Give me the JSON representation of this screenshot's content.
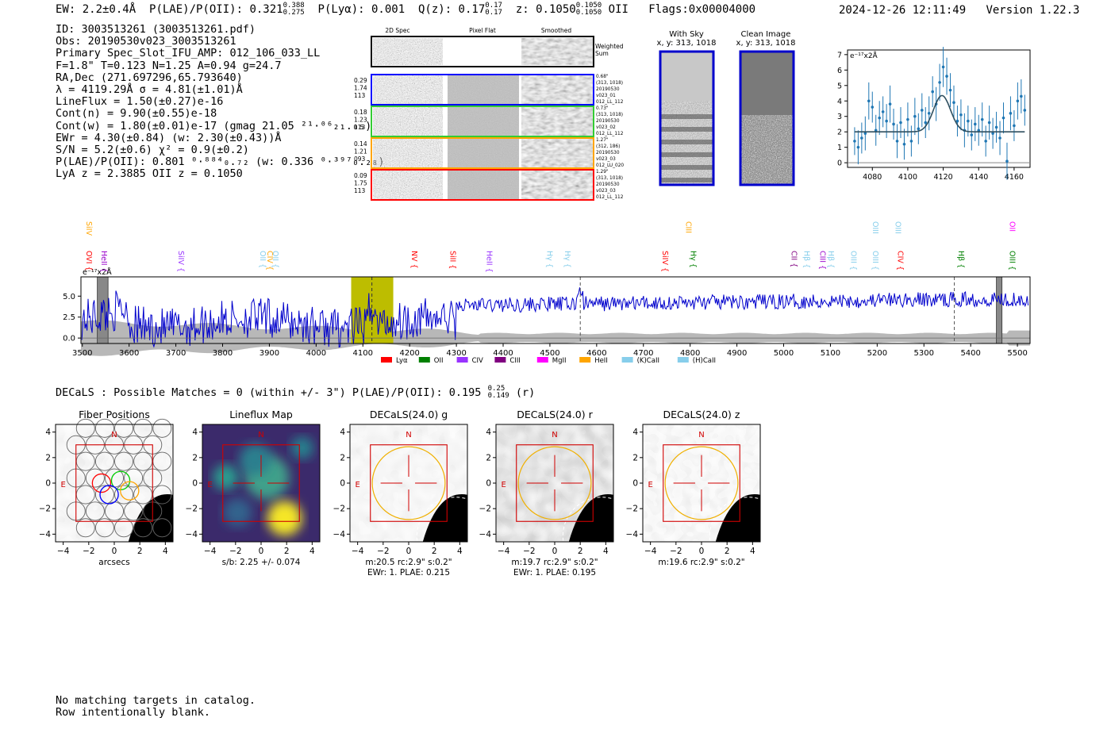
{
  "header": {
    "ew": "EW: 2.2±0.4Å",
    "plae": "P(LAE)/P(OII): 0.321",
    "plae_hi": "0.388",
    "plae_lo": "0.275",
    "plya": "P(Lyα): 0.001",
    "qz": "Q(z): 0.17",
    "qz_hi": "0.17",
    "qz_lo": "0.17",
    "z": "z: 0.1050",
    "z_hi": "0.1050",
    "z_lo": "0.1050",
    "line": "OII",
    "flags": "Flags:0x00004000",
    "timestamp": "2024-12-26 12:11:49",
    "version": "Version 1.22.3"
  },
  "info": {
    "lines": [
      "ID: 3003513261 (3003513261.pdf)",
      "Obs: 20190530v023_3003513261",
      "Primary Spec_Slot_IFU_AMP: 012_106_033_LL",
      "F=1.8\"  T=0.123  N=1.25  A=0.94  g=24.7",
      "RA,Dec (271.697296,65.793640)",
      "λ = 4119.29Å   σ = 4.81(±1.01)Å",
      "LineFlux = 1.50(±0.27)e-16",
      "Cont(n) = 9.90(±0.55)e-18",
      "Cont(w) = 1.80(±0.01)e-17 (gmag 21.05 ²¹·⁰⁶₂₁.₀₅)",
      "EWr = 4.30(±0.84) (w: 2.30(±0.43))Å",
      "S/N = 5.2(±0.6)  χ² = 0.9(±0.2)",
      "P(LAE)/P(OII): 0.801 ⁰·⁸⁸⁴₀.₇₂ (w: 0.336 ⁰·³⁹⁷₀.₂₈)",
      "LyA z = 2.3885  OII z = 0.1050"
    ]
  },
  "cutouts": {
    "col_titles": [
      "2D Spec",
      "Pixel Flat",
      "Smoothed"
    ],
    "weighted_label": [
      "Weighted",
      "Sum"
    ],
    "rows": [
      {
        "left": [
          "0.29",
          "1.74",
          "113"
        ],
        "right": [
          "0.68\"",
          "(313, 1018)",
          "20190530",
          "v023_01",
          "012_LL_112"
        ],
        "color": "#0000ff"
      },
      {
        "left": [
          "0.18",
          "1.23",
          "113"
        ],
        "right": [
          "0.73\"",
          "(313, 1018)",
          "20190530",
          "v023_02",
          "012_LL_112"
        ],
        "color": "#33cc33"
      },
      {
        "left": [
          "0.14",
          "1.21",
          "093"
        ],
        "right": [
          "1.27\"",
          "(312, 186)",
          "20190530",
          "v023_03",
          "012_LU_020"
        ],
        "color": "#ffa500"
      },
      {
        "left": [
          "0.09",
          "1.75",
          "113"
        ],
        "right": [
          "1.29\"",
          "(313, 1018)",
          "20190530",
          "v023_03",
          "012_LL_112"
        ],
        "color": "#ff0000"
      }
    ],
    "with_sky_title": "With Sky",
    "with_sky_coords": "x, y: 313, 1018",
    "clean_title": "Clean Image",
    "clean_coords": "x, y: 313, 1018"
  },
  "zoom_chart": {
    "chart_data": {
      "type": "scatter",
      "ylabel": "e⁻¹⁷x2Å",
      "xlim": [
        4066,
        4169
      ],
      "ylim": [
        -0.3,
        7.3
      ],
      "xticks": [
        4080,
        4100,
        4120,
        4140,
        4160
      ],
      "yticks": [
        0,
        1,
        2,
        3,
        4,
        5,
        6,
        7
      ],
      "points": [
        [
          4070,
          1.4,
          0.9
        ],
        [
          4072,
          1.0,
          1.1
        ],
        [
          4074,
          1.6,
          1.0
        ],
        [
          4076,
          1.9,
          1.1
        ],
        [
          4078,
          4.0,
          1.2
        ],
        [
          4080,
          3.6,
          1.0
        ],
        [
          4082,
          2.1,
          1.0
        ],
        [
          4084,
          2.9,
          1.1
        ],
        [
          4086,
          3.3,
          1.0
        ],
        [
          4088,
          2.7,
          1.1
        ],
        [
          4090,
          3.8,
          1.2
        ],
        [
          4092,
          2.5,
          1.0
        ],
        [
          4094,
          1.4,
          1.1
        ],
        [
          4096,
          2.6,
          1.0
        ],
        [
          4098,
          1.2,
          1.0
        ],
        [
          4100,
          2.8,
          1.1
        ],
        [
          4102,
          1.4,
          1.0
        ],
        [
          4104,
          3.0,
          1.2
        ],
        [
          4106,
          2.2,
          1.0
        ],
        [
          4108,
          3.4,
          1.1
        ],
        [
          4110,
          2.6,
          1.0
        ],
        [
          4112,
          3.2,
          1.1
        ],
        [
          4114,
          4.6,
          1.0
        ],
        [
          4116,
          3.8,
          1.1
        ],
        [
          4118,
          5.2,
          1.2
        ],
        [
          4120,
          6.2,
          1.3
        ],
        [
          4122,
          5.6,
          1.2
        ],
        [
          4124,
          4.7,
          1.1
        ],
        [
          4126,
          3.9,
          1.1
        ],
        [
          4128,
          2.7,
          1.0
        ],
        [
          4130,
          3.1,
          1.0
        ],
        [
          4132,
          2.1,
          1.1
        ],
        [
          4134,
          2.7,
          1.0
        ],
        [
          4136,
          1.8,
          1.0
        ],
        [
          4138,
          2.5,
          1.1
        ],
        [
          4140,
          2.1,
          1.0
        ],
        [
          4142,
          2.8,
          1.1
        ],
        [
          4144,
          1.4,
          1.0
        ],
        [
          4146,
          2.6,
          1.1
        ],
        [
          4148,
          1.9,
          1.0
        ],
        [
          4150,
          2.3,
          1.0
        ],
        [
          4152,
          1.6,
          1.1
        ],
        [
          4154,
          2.9,
          1.0
        ],
        [
          4156,
          0.1,
          1.2
        ],
        [
          4158,
          3.2,
          1.1
        ],
        [
          4160,
          2.4,
          1.0
        ],
        [
          4162,
          4.0,
          1.2
        ],
        [
          4164,
          4.3,
          1.1
        ],
        [
          4166,
          3.4,
          1.0
        ]
      ],
      "model": {
        "continuum": 2.0,
        "amplitude": 2.35,
        "center": 4119.3,
        "sigma": 4.81,
        "xrange": [
          4070,
          4166
        ]
      }
    }
  },
  "spectrum": {
    "chart_data": {
      "type": "line",
      "ylabel": "e⁻¹⁷x2Å",
      "xlim": [
        3497,
        5527
      ],
      "ylim": [
        -0.65,
        7.3
      ],
      "xticks": [
        3500,
        3600,
        3700,
        3800,
        3900,
        4000,
        4100,
        4200,
        4300,
        4400,
        4500,
        4600,
        4700,
        4800,
        4900,
        5000,
        5100,
        5200,
        5300,
        5400,
        5500
      ],
      "yticks": [
        0.0,
        2.5,
        5.0
      ],
      "yticklabels": [
        "0.0",
        "2.5",
        "5.0"
      ],
      "series_name": "flux",
      "highlight_band": [
        4075,
        4165
      ],
      "highlight_line": 4119.3,
      "shaded_bands": [
        [
          3532,
          3555
        ],
        [
          5455,
          5467
        ]
      ],
      "dashed_lines": [
        4565,
        5365
      ],
      "line_labels": [
        {
          "text": "OVI",
          "color": "#ff0000",
          "x": 3509,
          "row": "low"
        },
        {
          "text": "SiIV",
          "color": "#ffa500",
          "x": 3509,
          "row": "high"
        },
        {
          "text": "HeII",
          "color": "#9900cc",
          "x": 3541,
          "row": "low"
        },
        {
          "text": "SiIV",
          "color": "#9933ff",
          "x": 3706,
          "row": "low"
        },
        {
          "text": "OII",
          "color": "#87ceeb",
          "x": 3881,
          "row": "low"
        },
        {
          "text": "CIV",
          "color": "#ffa500",
          "x": 3896,
          "row": "low"
        },
        {
          "text": "OII",
          "color": "#87ceeb",
          "x": 3908,
          "row": "low"
        },
        {
          "text": "NV",
          "color": "#ff0000",
          "x": 4205,
          "row": "low"
        },
        {
          "text": "SiII",
          "color": "#ff0000",
          "x": 4287,
          "row": "low"
        },
        {
          "text": "HeII",
          "color": "#9933ff",
          "x": 4365,
          "row": "low"
        },
        {
          "text": "Hγ",
          "color": "#87ceeb",
          "x": 4494,
          "row": "low"
        },
        {
          "text": "Hγ",
          "color": "#87ceeb",
          "x": 4532,
          "row": "low"
        },
        {
          "text": "SiIV",
          "color": "#ff0000",
          "x": 4741,
          "row": "low"
        },
        {
          "text": "Hγ",
          "color": "#008000",
          "x": 4801,
          "row": "low"
        },
        {
          "text": "CIII",
          "color": "#ffa500",
          "x": 4791,
          "row": "high"
        },
        {
          "text": "CII",
          "color": "#800080",
          "x": 5017,
          "row": "low"
        },
        {
          "text": "Hβ",
          "color": "#87ceeb",
          "x": 5044,
          "row": "low"
        },
        {
          "text": "CIII",
          "color": "#9900cc",
          "x": 5078,
          "row": "low"
        },
        {
          "text": "Hβ",
          "color": "#87ceeb",
          "x": 5096,
          "row": "low"
        },
        {
          "text": "OIII",
          "color": "#87ceeb",
          "x": 5144,
          "row": "low"
        },
        {
          "text": "OIII",
          "color": "#87ceeb",
          "x": 5191,
          "row": "low"
        },
        {
          "text": "OIII",
          "color": "#87ceeb",
          "x": 5191,
          "row": "high"
        },
        {
          "text": "OIII",
          "color": "#87ceeb",
          "x": 5239,
          "row": "high"
        },
        {
          "text": "CIV",
          "color": "#ff0000",
          "x": 5244,
          "row": "low"
        },
        {
          "text": "Hβ",
          "color": "#008000",
          "x": 5374,
          "row": "low"
        },
        {
          "text": "OIII",
          "color": "#008000",
          "x": 5484,
          "row": "low"
        },
        {
          "text": "OII",
          "color": "#ff00ff",
          "x": 5484,
          "row": "high"
        }
      ],
      "legend": [
        {
          "label": "Lyα",
          "color": "#ff0000"
        },
        {
          "label": "OII",
          "color": "#008000"
        },
        {
          "label": "CIV",
          "color": "#9933ff"
        },
        {
          "label": "CIII",
          "color": "#800080"
        },
        {
          "label": "MgII",
          "color": "#ff00ff"
        },
        {
          "label": "HeII",
          "color": "#ffa500"
        },
        {
          "label": "(K)CaII",
          "color": "#87ceeb"
        },
        {
          "label": "(H)CaII",
          "color": "#87ceeb"
        }
      ]
    }
  },
  "decals": {
    "summary": "DECaLS : Possible Matches = 0 (within +/- 3\")  P(LAE)/P(OII): 0.195",
    "summary_hi": "0.25",
    "summary_lo": "0.149",
    "summary_band": "(r)",
    "panels": [
      {
        "title": "Fiber Positions",
        "caption1": "arcsecs",
        "caption2": "",
        "show_compass": true,
        "kind": "fibers"
      },
      {
        "title": "Lineflux Map",
        "caption1": "s/b: 2.25 +/- 0.074",
        "caption2": "",
        "show_compass": true,
        "kind": "lineflux"
      },
      {
        "title": "DECaLS(24.0) g",
        "caption1": "m:20.5 rc:2.9\"  s:0.2\"",
        "caption2": "EWr: 1. PLAE: 0.215",
        "show_compass": true,
        "kind": "g"
      },
      {
        "title": "DECaLS(24.0) r",
        "caption1": "m:19.7 rc:2.9\"  s:0.2\"",
        "caption2": "EWr: 1. PLAE: 0.195",
        "show_compass": true,
        "kind": "r"
      },
      {
        "title": "DECaLS(24.0) z",
        "caption1": "m:19.6 rc:2.9\"  s:0.2\"",
        "caption2": "",
        "show_compass": true,
        "kind": "z"
      }
    ],
    "axis_ticks": [
      -4,
      -2,
      0,
      2,
      4
    ],
    "north": "N",
    "east": "E"
  },
  "footer": {
    "lines": [
      "No matching targets in catalog.",
      "Row intentionally blank."
    ]
  }
}
